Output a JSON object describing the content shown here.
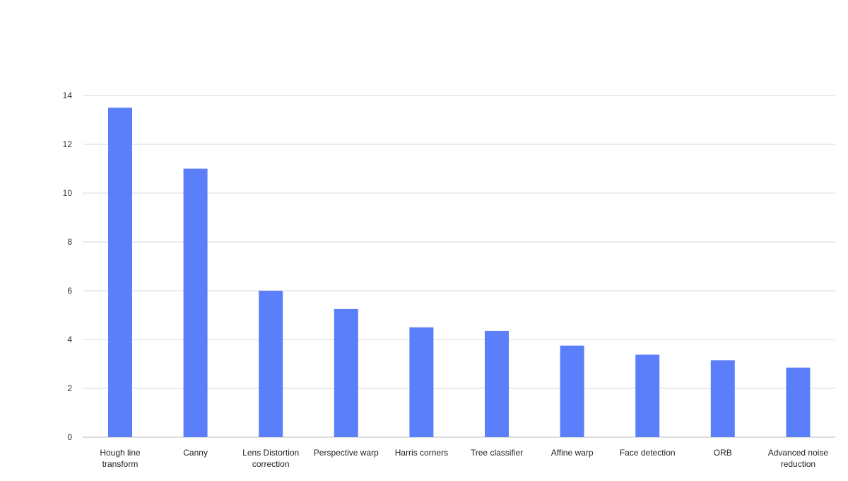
{
  "chart_data": {
    "type": "bar",
    "title": "",
    "xlabel": "",
    "ylabel": "",
    "categories": [
      [
        "Hough line",
        "transform"
      ],
      [
        "Canny"
      ],
      [
        "Lens Distortion",
        "correction"
      ],
      [
        "Perspective warp"
      ],
      [
        "Harris corners"
      ],
      [
        "Tree classifier"
      ],
      [
        "Affine warp"
      ],
      [
        "Face detection"
      ],
      [
        "ORB"
      ],
      [
        "Advanced noise",
        "reduction"
      ]
    ],
    "values": [
      13.5,
      11.0,
      6.0,
      5.25,
      4.5,
      4.35,
      3.75,
      3.38,
      3.15,
      2.85
    ],
    "ylim": [
      0,
      14
    ],
    "yticks": [
      0,
      2,
      4,
      6,
      8,
      10,
      12,
      14
    ],
    "grid": true,
    "legend": "none",
    "bar_color": "#5b7ffb",
    "grid_color": "#d9d9d9"
  }
}
